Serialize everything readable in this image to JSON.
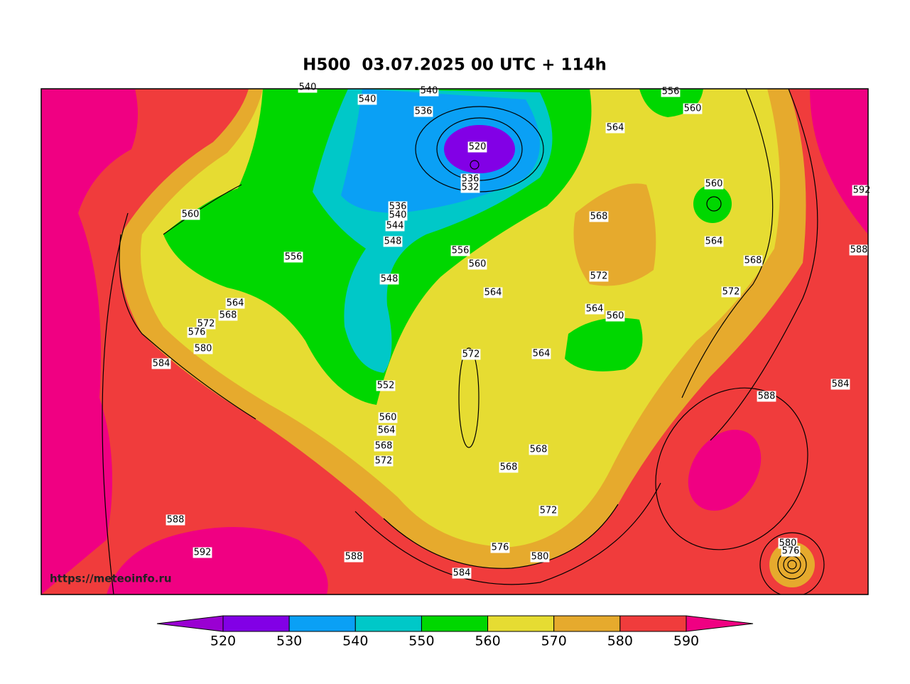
{
  "title": "H500  03.07.2025 00 UTC + 114h",
  "watermark": "https://meteoinfo.ru",
  "contour_labels": [
    540,
    540,
    540,
    536,
    520,
    536,
    532,
    536,
    540,
    544,
    548,
    556,
    560,
    564,
    548,
    560,
    556,
    564,
    568,
    572,
    576,
    580,
    584,
    552,
    560,
    564,
    568,
    572,
    572,
    564,
    568,
    568,
    572,
    576,
    580,
    584,
    588,
    588,
    592,
    568,
    572,
    564,
    560,
    564,
    556,
    560,
    560,
    564,
    568,
    572,
    592,
    588,
    584,
    588,
    580,
    576
  ],
  "colorbar": {
    "ticks": [
      520,
      530,
      540,
      550,
      560,
      570,
      580,
      590
    ],
    "colors": [
      "#9a00d2",
      "#8200e6",
      "#0aa0f5",
      "#00c8c8",
      "#00d700",
      "#e6dc32",
      "#e6aa2d",
      "#f03c3c",
      "#f00082"
    ]
  }
}
